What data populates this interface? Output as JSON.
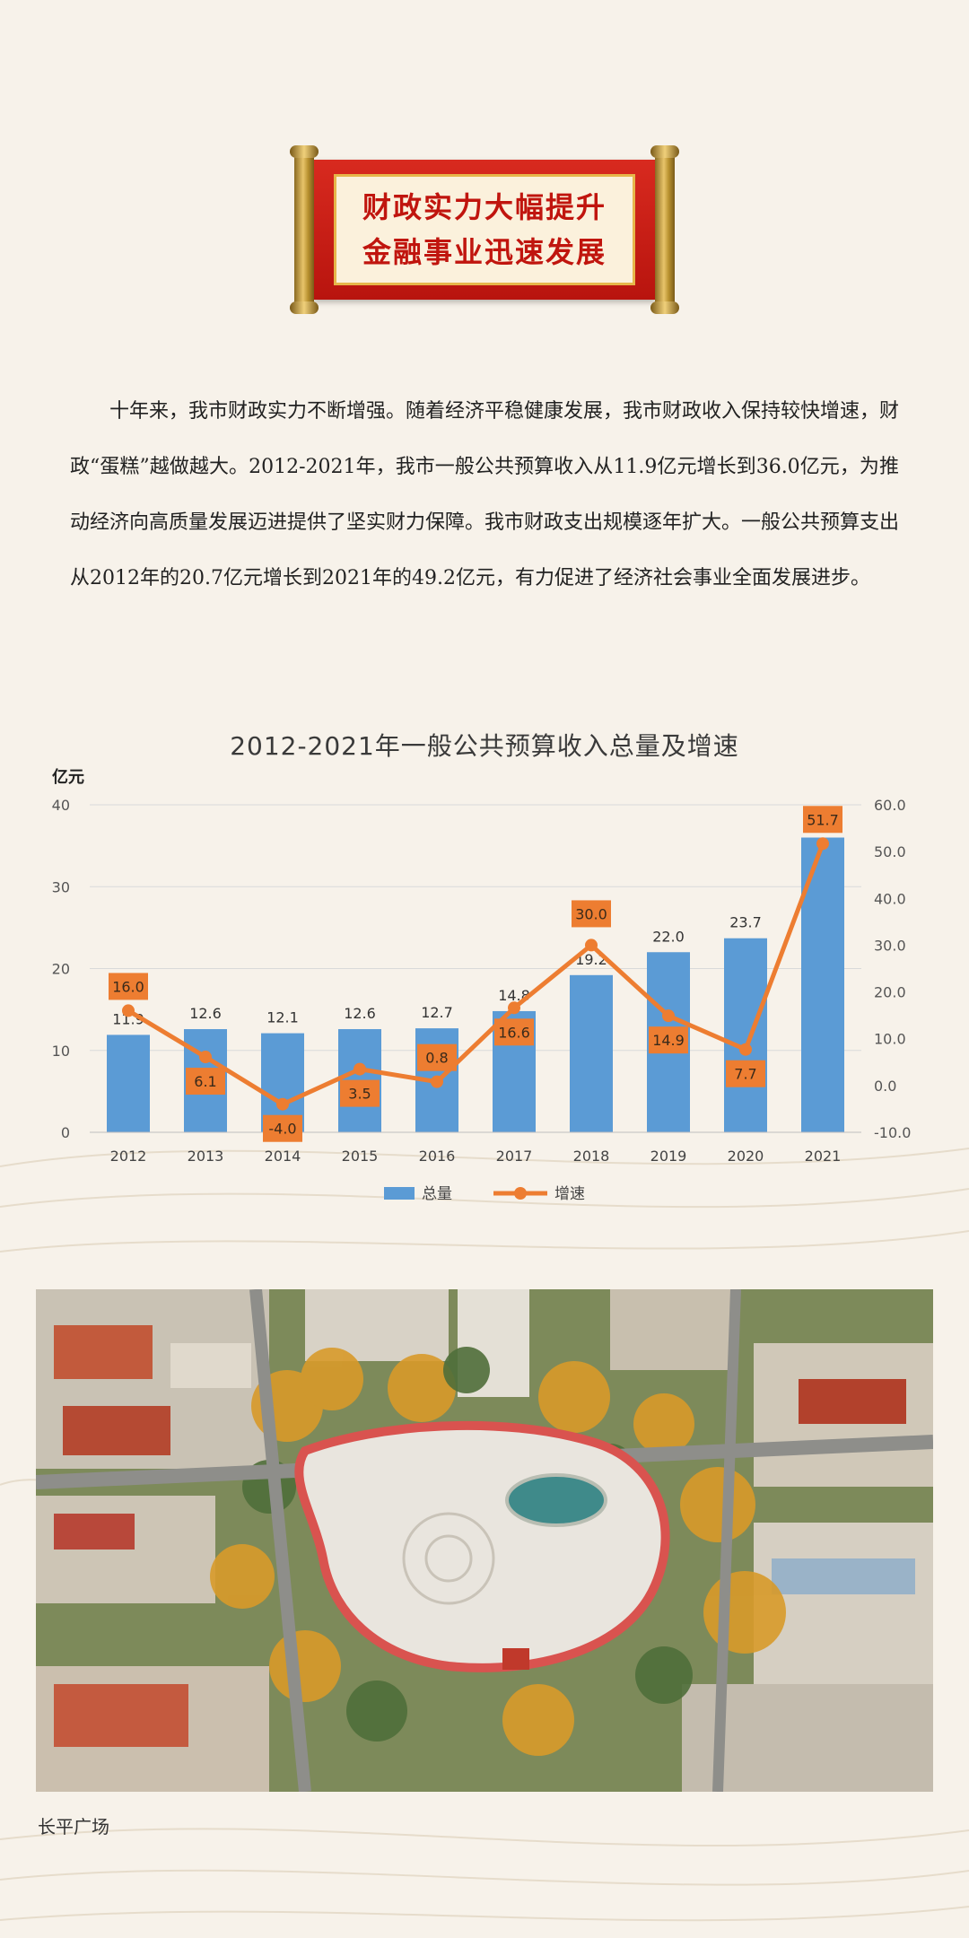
{
  "banner": {
    "line1": "财政实力大幅提升",
    "line2": "金融事业迅速发展"
  },
  "intro": {
    "text": "十年来，我市财政实力不断增强。随着经济平稳健康发展，我市财政收入保持较快增速，财政“蛋糕”越做越大。2012-2021年，我市一般公共预算收入从11.9亿元增长到36.0亿元，为推动经济向高质量发展迈进提供了坚实财力保障。我市财政支出规模逐年扩大。一般公共预算支出从2012年的20.7亿元增长到2021年的49.2亿元，有力促进了经济社会事业全面发展进步。"
  },
  "chart_data": {
    "type": "bar",
    "title": "2012-2021年一般公共预算收入总量及增速",
    "ylabel": "亿元",
    "categories": [
      "2012",
      "2013",
      "2014",
      "2015",
      "2016",
      "2017",
      "2018",
      "2019",
      "2020",
      "2021"
    ],
    "series": [
      {
        "name": "总量",
        "type": "bar",
        "axis": "left",
        "values": [
          11.9,
          12.6,
          12.1,
          12.6,
          12.7,
          14.8,
          19.2,
          22.0,
          23.7,
          36.0
        ],
        "labels": [
          "11.9",
          "12.6",
          "12.1",
          "12.6",
          "12.7",
          "14.8",
          "19.2",
          "22.0",
          "23.7",
          ""
        ],
        "color": "#5b9bd5"
      },
      {
        "name": "增速",
        "type": "line",
        "axis": "right",
        "values": [
          16.0,
          6.1,
          -4.0,
          3.5,
          0.8,
          16.6,
          30.0,
          14.9,
          7.7,
          51.7
        ],
        "labels": [
          "16.0",
          "6.1",
          "-4.0",
          "3.5",
          "0.8",
          "16.6",
          "30.0",
          "14.9",
          "7.7",
          "51.7"
        ],
        "color": "#ed7d31"
      }
    ],
    "ylim_left": [
      0,
      40
    ],
    "yticks_left": [
      "0",
      "10",
      "20",
      "30",
      "40"
    ],
    "ylim_right": [
      -10,
      60
    ],
    "yticks_right": [
      "-10.0",
      "0.0",
      "10.0",
      "20.0",
      "30.0",
      "40.0",
      "50.0",
      "60.0"
    ],
    "grid": true,
    "legend": "bottom"
  },
  "photo": {
    "caption": "长平广场"
  }
}
